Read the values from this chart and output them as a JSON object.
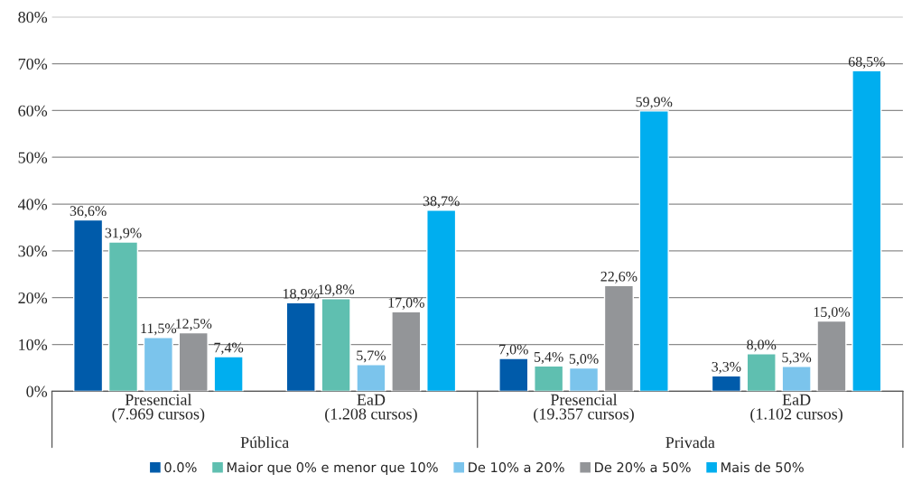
{
  "chart_data": {
    "type": "bar",
    "categories": [
      "Presencial\n(7.969 cursos)",
      "EaD\n(1.208 cursos)",
      "Presencial\n(19.357 cursos)",
      "EaD\n(1.102 cursos)"
    ],
    "annotations": [
      "Pública",
      "Privada"
    ],
    "series": [
      {
        "name": "0.0%",
        "color": "#005baa",
        "values": [
          36.6,
          18.9,
          7.0,
          3.3
        ],
        "value_labels": [
          "36,6%",
          "18,9%",
          "7,0%",
          "3,3%"
        ]
      },
      {
        "name": "Maior que 0% e menor que 10%",
        "color": "#5fbfb0",
        "values": [
          31.9,
          19.8,
          5.4,
          8.0
        ],
        "value_labels": [
          "31,9%",
          "19,8%",
          "5,4%",
          "8,0%"
        ]
      },
      {
        "name": "De 10% a 20%",
        "color": "#7bc4ec",
        "values": [
          11.5,
          5.7,
          5.0,
          5.3
        ],
        "value_labels": [
          "11,5%",
          "5,7%",
          "5,0%",
          "5,3%"
        ]
      },
      {
        "name": "De 20% a 50%",
        "color": "#939598",
        "values": [
          12.5,
          17.0,
          22.6,
          15.0
        ],
        "value_labels": [
          "12,5%",
          "17,0%",
          "22,6%",
          "15,0%"
        ]
      },
      {
        "name": "Mais de 50%",
        "color": "#00aeef",
        "values": [
          7.4,
          38.7,
          59.9,
          68.5
        ],
        "value_labels": [
          "7,4%",
          "38,7%",
          "59,9%",
          "68,5%"
        ]
      }
    ],
    "ylim": [
      0,
      80
    ],
    "yticks": [
      {
        "value": 0,
        "label": "0%"
      },
      {
        "value": 10,
        "label": "10%"
      },
      {
        "value": 20,
        "label": "20%"
      },
      {
        "value": 30,
        "label": "30%"
      },
      {
        "value": 40,
        "label": "40%"
      },
      {
        "value": 50,
        "label": "50%"
      },
      {
        "value": 60,
        "label": "60%"
      },
      {
        "value": 70,
        "label": "70%"
      },
      {
        "value": 80,
        "label": "80%"
      }
    ],
    "grid": "y",
    "legend": "bottom"
  }
}
